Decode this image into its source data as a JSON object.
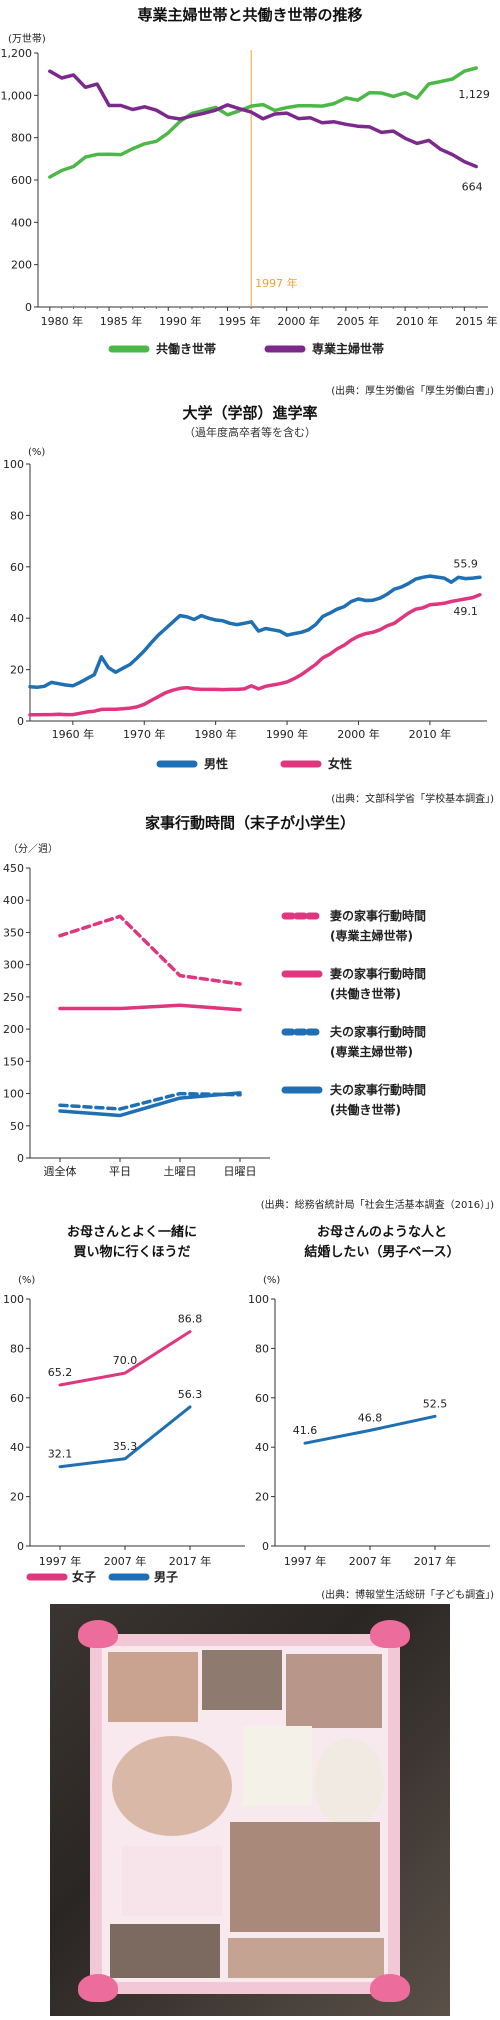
{
  "chart_data": [
    {
      "type": "line",
      "title": "専業主婦世帯と共働き世帯の推移",
      "unit": "(万世帯)",
      "x": [
        1980,
        1981,
        1982,
        1983,
        1984,
        1985,
        1986,
        1987,
        1988,
        1989,
        1990,
        1991,
        1992,
        1993,
        1994,
        1995,
        1996,
        1997,
        1998,
        1999,
        2000,
        2001,
        2002,
        2003,
        2004,
        2005,
        2006,
        2007,
        2008,
        2009,
        2010,
        2011,
        2012,
        2013,
        2014,
        2015,
        2016
      ],
      "xlim": [
        1979,
        2017
      ],
      "ylim": [
        0,
        1200
      ],
      "yticks": [
        0,
        200,
        400,
        600,
        800,
        1000,
        1200
      ],
      "ytick_labels": [
        "0",
        "200",
        "400",
        "600",
        "800",
        "1,000",
        "1,200"
      ],
      "xticks": [
        1980,
        1985,
        1990,
        1995,
        2000,
        2005,
        2010,
        2015
      ],
      "xtick_labels": [
        "1980 年",
        "1985 年",
        "1990 年",
        "1995 年",
        "2000 年",
        "2005 年",
        "2010 年",
        "2015 年"
      ],
      "series": [
        {
          "name": "共働き世帯",
          "color": "#4cb848",
          "values": [
            614,
            645,
            664,
            708,
            721,
            722,
            720,
            748,
            771,
            783,
            823,
            877,
            914,
            929,
            943,
            908,
            927,
            949,
            956,
            929,
            942,
            951,
            951,
            949,
            961,
            988,
            977,
            1013,
            1011,
            995,
            1012,
            987,
            1054,
            1065,
            1077,
            1114,
            1129
          ]
        },
        {
          "name": "専業主婦世帯",
          "color": "#7b2a8c",
          "values": [
            1114,
            1082,
            1096,
            1038,
            1053,
            952,
            952,
            933,
            946,
            930,
            897,
            888,
            903,
            915,
            930,
            955,
            937,
            921,
            889,
            912,
            916,
            890,
            894,
            870,
            875,
            863,
            854,
            851,
            825,
            831,
            797,
            773,
            787,
            745,
            720,
            687,
            664
          ]
        }
      ],
      "annotations": [
        {
          "text": "1997 年",
          "x": 1997,
          "color": "#f0a030"
        },
        {
          "text": "1,129",
          "series": "共働き世帯"
        },
        {
          "text": "664",
          "series": "専業主婦世帯"
        }
      ],
      "source": "(出典：厚生労働省「厚生労働白書」)",
      "legend_position": "bottom"
    },
    {
      "type": "line",
      "title": "大学（学部）進学率",
      "subtitle": "（過年度高卒者等を含む）",
      "unit": "(%)",
      "x": [
        1954,
        1955,
        1956,
        1957,
        1958,
        1959,
        1960,
        1961,
        1962,
        1963,
        1964,
        1965,
        1966,
        1967,
        1968,
        1969,
        1970,
        1971,
        1972,
        1973,
        1974,
        1975,
        1976,
        1977,
        1978,
        1979,
        1980,
        1981,
        1982,
        1983,
        1984,
        1985,
        1986,
        1987,
        1988,
        1989,
        1990,
        1991,
        1992,
        1993,
        1994,
        1995,
        1996,
        1997,
        1998,
        1999,
        2000,
        2001,
        2002,
        2003,
        2004,
        2005,
        2006,
        2007,
        2008,
        2009,
        2010,
        2011,
        2012,
        2013,
        2014,
        2015,
        2016,
        2017
      ],
      "xlim": [
        1954,
        2018
      ],
      "ylim": [
        0,
        100
      ],
      "yticks": [
        0,
        20,
        40,
        60,
        80,
        100
      ],
      "xticks": [
        1960,
        1970,
        1980,
        1990,
        2000,
        2010
      ],
      "xtick_labels": [
        "1960 年",
        "1970 年",
        "1980 年",
        "1990 年",
        "2000 年",
        "2010 年"
      ],
      "series": [
        {
          "name": "男性",
          "color": "#1f6fb5",
          "values": [
            13.3,
            13.1,
            13.5,
            15.0,
            14.5,
            14.0,
            13.7,
            15.0,
            16.5,
            18.0,
            25.0,
            20.7,
            19.0,
            20.5,
            22.0,
            24.5,
            27.3,
            30.5,
            33.5,
            36.0,
            38.5,
            41.0,
            40.5,
            39.5,
            41.0,
            40.0,
            39.3,
            39.0,
            38.0,
            37.5,
            38.0,
            38.6,
            35.0,
            36.0,
            35.5,
            35.0,
            33.4,
            34.0,
            34.5,
            35.5,
            37.5,
            40.7,
            42.0,
            43.5,
            44.5,
            46.5,
            47.5,
            46.9,
            47.0,
            47.8,
            49.3,
            51.3,
            52.1,
            53.5,
            55.2,
            55.9,
            56.4,
            56.0,
            55.6,
            54.0,
            55.9,
            55.4,
            55.6,
            55.9
          ]
        },
        {
          "name": "女性",
          "color": "#e0357f",
          "values": [
            2.4,
            2.4,
            2.5,
            2.5,
            2.6,
            2.5,
            2.5,
            3.0,
            3.5,
            3.8,
            4.5,
            4.6,
            4.6,
            4.8,
            5.0,
            5.5,
            6.5,
            8.0,
            9.5,
            11.0,
            12.0,
            12.7,
            13.0,
            12.5,
            12.3,
            12.3,
            12.3,
            12.2,
            12.3,
            12.3,
            12.5,
            13.7,
            12.5,
            13.5,
            14.0,
            14.5,
            15.2,
            16.5,
            18.0,
            20.0,
            22.0,
            24.6,
            26.0,
            28.0,
            29.5,
            31.5,
            33.0,
            34.0,
            34.5,
            35.5,
            37.0,
            38.0,
            40.0,
            42.0,
            43.5,
            44.0,
            45.2,
            45.5,
            45.8,
            46.5,
            47.0,
            47.5,
            48.0,
            49.1
          ]
        }
      ],
      "annotations": [
        {
          "text": "55.9",
          "series": "男性"
        },
        {
          "text": "49.1",
          "series": "女性"
        }
      ],
      "source": "(出典：文部科学省「学校基本調査」)",
      "legend_position": "bottom"
    },
    {
      "type": "line",
      "title": "家事行動時間（末子が小学生）",
      "unit": "（分／週）",
      "categories": [
        "週全体",
        "平日",
        "土曜日",
        "日曜日"
      ],
      "ylim": [
        0,
        450
      ],
      "yticks": [
        0,
        50,
        100,
        150,
        200,
        250,
        300,
        350,
        400,
        450
      ],
      "series": [
        {
          "name": "妻の家事行動時間",
          "name_sub": "(専業主婦世帯)",
          "color": "#e0357f",
          "dashed": true,
          "values": [
            345,
            375,
            283,
            270
          ]
        },
        {
          "name": "妻の家事行動時間",
          "name_sub": "(共働き世帯)",
          "color": "#e0357f",
          "dashed": false,
          "values": [
            232,
            232,
            237,
            230
          ]
        },
        {
          "name": "夫の家事行動時間",
          "name_sub": "(専業主婦世帯)",
          "color": "#1f6fb5",
          "dashed": true,
          "values": [
            82,
            76,
            100,
            98
          ]
        },
        {
          "name": "夫の家事行動時間",
          "name_sub": "(共働き世帯)",
          "color": "#1f6fb5",
          "dashed": false,
          "values": [
            73,
            66,
            93,
            101
          ]
        }
      ],
      "source": "(出典：総務省統計局「社会生活基本調査（2016）」)",
      "legend_position": "right"
    },
    {
      "type": "line",
      "title": "お母さんとよく一緒に",
      "title_line2": "買い物に行くほうだ",
      "unit": "(%)",
      "categories": [
        "1997 年",
        "2007 年",
        "2017 年"
      ],
      "ylim": [
        0,
        100
      ],
      "yticks": [
        0,
        20,
        40,
        60,
        80,
        100
      ],
      "series": [
        {
          "name": "女子",
          "color": "#e0357f",
          "values": [
            65.2,
            70.0,
            86.8
          ],
          "labels": [
            "65.2",
            "70.0",
            "86.8"
          ]
        },
        {
          "name": "男子",
          "color": "#1f6fb5",
          "values": [
            32.1,
            35.3,
            56.3
          ],
          "labels": [
            "32.1",
            "35.3",
            "56.3"
          ]
        }
      ],
      "legend_position": "bottom-left"
    },
    {
      "type": "line",
      "title": "お母さんのような人と",
      "title_line2": "結婚したい（男子ベース）",
      "unit": "(%)",
      "categories": [
        "1997 年",
        "2007 年",
        "2017 年"
      ],
      "ylim": [
        0,
        100
      ],
      "yticks": [
        0,
        20,
        40,
        60,
        80,
        100
      ],
      "series": [
        {
          "color": "#1f6fb5",
          "values": [
            41.6,
            46.8,
            52.5
          ],
          "labels": [
            "41.6",
            "46.8",
            "52.5"
          ]
        }
      ],
      "source": "(出典：博報堂生活総研「子ども調査」)"
    }
  ],
  "photo": {
    "colors": {
      "background": "#2e2a27",
      "frame": "#f2c8d6",
      "ribbon": "#ec6c9b"
    }
  }
}
